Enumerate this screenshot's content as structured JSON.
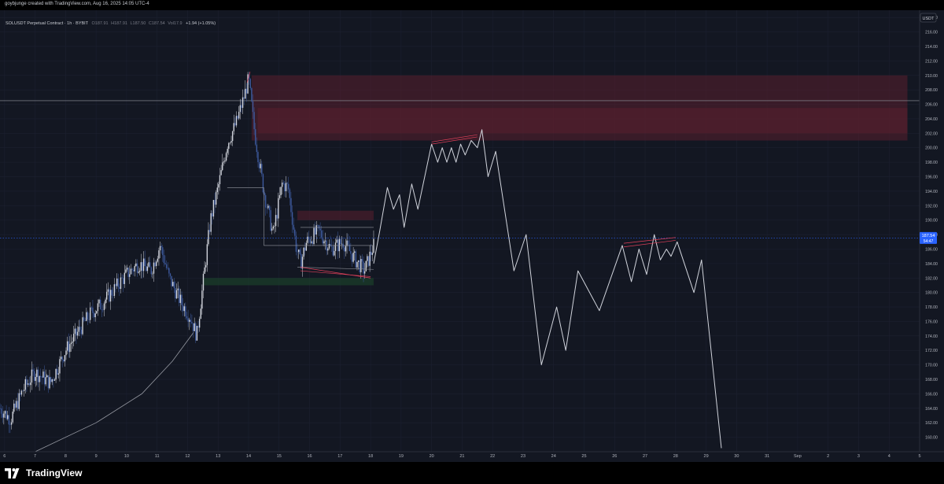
{
  "header": {
    "attribution": "goybjunge created with TradingView.com, Aug 16, 2025 14:05 UTC-4"
  },
  "legend": {
    "symbol": "SOLUSDT Perpetual Contract · 1h · BYBIT",
    "o_label": "O",
    "o_value": "187.91",
    "h_label": "H",
    "h_value": "187.91",
    "l_label": "L",
    "l_value": "187.50",
    "c_label": "C",
    "c_value": "187.54",
    "vol_label": "Vol",
    "vol_value": "17.9",
    "change": "+1.94 (+1.05%)"
  },
  "currency_badge": "USDT",
  "price_label": {
    "value": "187.54",
    "sub": "54:47"
  },
  "footer": {
    "brand": "TradingView"
  },
  "colors": {
    "background": "#131722",
    "grid": "#1c2030",
    "axis_text": "#b2b5be",
    "projection": "#d1d4dc",
    "supply_zone": "#5a1f2e",
    "demand_zone": "#1e4a2c",
    "price_label": "#2962ff",
    "candle_up": "#d1d4dc",
    "candle_down": "#3d5a9e"
  },
  "chart_data": {
    "type": "candlestick",
    "y_ticks": [
      "160.00",
      "162.00",
      "164.00",
      "166.00",
      "168.00",
      "170.00",
      "172.00",
      "174.00",
      "176.00",
      "178.00",
      "180.00",
      "182.00",
      "184.00",
      "186.00",
      "188.00",
      "190.00",
      "192.00",
      "194.00",
      "196.00",
      "198.00",
      "200.00",
      "202.00",
      "204.00",
      "206.00",
      "208.00",
      "210.00",
      "212.00",
      "214.00",
      "216.00",
      "218.00"
    ],
    "ylim": [
      158,
      219
    ],
    "x_ticks": [
      {
        "label": "6",
        "day": 6
      },
      {
        "label": "7",
        "day": 7
      },
      {
        "label": "8",
        "day": 8
      },
      {
        "label": "9",
        "day": 9
      },
      {
        "label": "10",
        "day": 10
      },
      {
        "label": "11",
        "day": 11
      },
      {
        "label": "12",
        "day": 12
      },
      {
        "label": "13",
        "day": 13
      },
      {
        "label": "14",
        "day": 14
      },
      {
        "label": "15",
        "day": 15
      },
      {
        "label": "16",
        "day": 16
      },
      {
        "label": "17",
        "day": 17
      },
      {
        "label": "18",
        "day": 18
      },
      {
        "label": "19",
        "day": 19
      },
      {
        "label": "20",
        "day": 20
      },
      {
        "label": "21",
        "day": 21
      },
      {
        "label": "22",
        "day": 22
      },
      {
        "label": "23",
        "day": 23
      },
      {
        "label": "24",
        "day": 24
      },
      {
        "label": "25",
        "day": 25
      },
      {
        "label": "26",
        "day": 26
      },
      {
        "label": "27",
        "day": 27
      },
      {
        "label": "28",
        "day": 28
      },
      {
        "label": "29",
        "day": 29
      },
      {
        "label": "30",
        "day": 30
      },
      {
        "label": "31",
        "day": 31
      },
      {
        "label": "Sep",
        "day": 32
      },
      {
        "label": "2",
        "day": 33
      },
      {
        "label": "3",
        "day": 34
      },
      {
        "label": "4",
        "day": 35
      },
      {
        "label": "5",
        "day": 36
      }
    ],
    "xlim": [
      5.85,
      36.0
    ],
    "price_path": [
      [
        5.85,
        164.0
      ],
      [
        6.2,
        162.5
      ],
      [
        6.6,
        166.5
      ],
      [
        7.0,
        169.0
      ],
      [
        7.5,
        167.5
      ],
      [
        8.0,
        172.0
      ],
      [
        8.4,
        174.5
      ],
      [
        8.8,
        177.0
      ],
      [
        9.2,
        178.5
      ],
      [
        9.6,
        180.5
      ],
      [
        10.0,
        182.5
      ],
      [
        10.4,
        184.0
      ],
      [
        10.8,
        183.0
      ],
      [
        11.1,
        186.5
      ],
      [
        11.4,
        182.0
      ],
      [
        11.8,
        178.5
      ],
      [
        12.1,
        176.5
      ],
      [
        12.3,
        174.0
      ],
      [
        12.5,
        181.0
      ],
      [
        12.75,
        190.0
      ],
      [
        13.0,
        194.5
      ],
      [
        13.3,
        200.5
      ],
      [
        13.6,
        203.5
      ],
      [
        13.85,
        207.0
      ],
      [
        14.0,
        209.5
      ],
      [
        14.2,
        202.0
      ],
      [
        14.5,
        194.0
      ],
      [
        14.8,
        188.0
      ],
      [
        15.1,
        195.0
      ],
      [
        15.3,
        194.5
      ],
      [
        15.55,
        186.5
      ],
      [
        15.7,
        184.0
      ],
      [
        15.9,
        187.0
      ],
      [
        16.3,
        188.5
      ],
      [
        16.7,
        186.0
      ],
      [
        17.1,
        187.0
      ],
      [
        17.5,
        184.5
      ],
      [
        17.8,
        183.0
      ],
      [
        18.1,
        186.5
      ]
    ],
    "projection_path": [
      [
        18.1,
        184.0
      ],
      [
        18.3,
        188.5
      ],
      [
        18.55,
        194.5
      ],
      [
        18.75,
        191.5
      ],
      [
        18.95,
        193.5
      ],
      [
        19.1,
        189.0
      ],
      [
        19.35,
        195.0
      ],
      [
        19.55,
        191.5
      ],
      [
        20.0,
        200.5
      ],
      [
        20.2,
        198.0
      ],
      [
        20.35,
        200.0
      ],
      [
        20.5,
        198.0
      ],
      [
        20.65,
        200.0
      ],
      [
        20.8,
        198.0
      ],
      [
        20.95,
        200.5
      ],
      [
        21.1,
        199.0
      ],
      [
        21.3,
        201.0
      ],
      [
        21.5,
        200.0
      ],
      [
        21.65,
        202.5
      ],
      [
        21.85,
        196.0
      ],
      [
        22.1,
        199.5
      ],
      [
        22.7,
        183.0
      ],
      [
        23.1,
        188.0
      ],
      [
        23.6,
        170.0
      ],
      [
        24.1,
        178.0
      ],
      [
        24.4,
        172.0
      ],
      [
        24.8,
        183.0
      ],
      [
        25.5,
        177.5
      ],
      [
        26.25,
        186.5
      ],
      [
        26.55,
        181.5
      ],
      [
        26.8,
        186.0
      ],
      [
        27.05,
        182.5
      ],
      [
        27.3,
        188.0
      ],
      [
        27.5,
        184.5
      ],
      [
        27.7,
        186.0
      ],
      [
        27.85,
        185.0
      ],
      [
        28.05,
        187.0
      ],
      [
        28.6,
        180.0
      ],
      [
        28.85,
        184.5
      ],
      [
        29.5,
        158.5
      ]
    ],
    "curve": [
      [
        7.0,
        158.0
      ],
      [
        9.0,
        162.0
      ],
      [
        10.5,
        166.0
      ],
      [
        11.5,
        170.5
      ],
      [
        12.2,
        174.5
      ]
    ],
    "zones": [
      {
        "kind": "supply",
        "x0": 14.1,
        "x1": 35.6,
        "y0": 201.0,
        "y1": 210.0
      },
      {
        "kind": "supply",
        "x0": 14.3,
        "x1": 35.6,
        "y0": 202.0,
        "y1": 205.5
      },
      {
        "kind": "supply",
        "x0": 15.6,
        "x1": 18.1,
        "y0": 190.0,
        "y1": 191.3
      },
      {
        "kind": "demand",
        "x0": 12.5,
        "x1": 18.1,
        "y0": 181.0,
        "y1": 182.0
      }
    ],
    "levels": [
      {
        "y": 206.5,
        "x0": 5.85,
        "x1": 36.0
      },
      {
        "y": 187.54,
        "x0": 5.85,
        "x1": 36.0,
        "dotted": true
      }
    ],
    "segments": [
      [
        [
          13.3,
          194.5
        ],
        [
          14.5,
          194.5
        ]
      ],
      [
        [
          14.5,
          194.5
        ],
        [
          14.5,
          186.5
        ]
      ],
      [
        [
          14.5,
          186.5
        ],
        [
          18.1,
          186.5
        ]
      ],
      [
        [
          15.7,
          189.0
        ],
        [
          18.1,
          189.0
        ]
      ],
      [
        [
          15.6,
          183.5
        ],
        [
          18.1,
          183.2
        ]
      ]
    ],
    "red_lines": [
      [
        [
          15.7,
          183.5
        ],
        [
          18.0,
          182.0
        ]
      ],
      [
        [
          15.7,
          183.0
        ],
        [
          18.0,
          182.2
        ]
      ],
      [
        [
          20.0,
          200.5
        ],
        [
          21.5,
          201.5
        ]
      ],
      [
        [
          20.0,
          200.8
        ],
        [
          21.5,
          201.8
        ]
      ],
      [
        [
          26.3,
          186.3
        ],
        [
          28.0,
          187.2
        ]
      ],
      [
        [
          26.3,
          186.8
        ],
        [
          28.0,
          187.6
        ]
      ],
      [
        [
          13.95,
          209.0
        ],
        [
          14.05,
          210.5
        ]
      ]
    ]
  }
}
